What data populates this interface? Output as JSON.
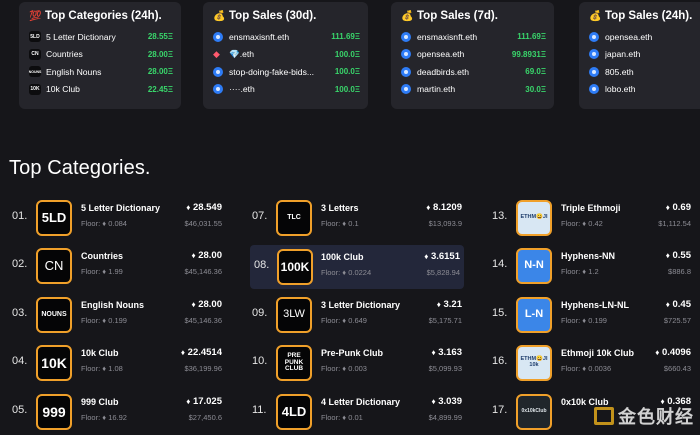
{
  "cards": [
    {
      "title_icon": "💯",
      "title": "Top Categories (24h).",
      "rows": [
        {
          "icon": "5LD",
          "label": "5 Letter Dictionary",
          "value": "28.55Ξ"
        },
        {
          "icon": "CN",
          "label": "Countries",
          "value": "28.00Ξ"
        },
        {
          "icon": "NOUNS",
          "label": "English Nouns",
          "value": "28.00Ξ"
        },
        {
          "icon": "10K",
          "label": "10k Club",
          "value": "22.45Ξ"
        }
      ]
    },
    {
      "title_icon": "💰",
      "title": "Top Sales (30d).",
      "rows": [
        {
          "icon": "ens",
          "label": "ensmaxisnft.eth",
          "value": "111.69Ξ"
        },
        {
          "icon": "gem",
          "label": "💎.eth",
          "value": "100.0Ξ"
        },
        {
          "icon": "ens",
          "label": "stop-doing-fake-bids...",
          "value": "100.0Ξ"
        },
        {
          "icon": "ens",
          "label": "····.eth",
          "value": "100.0Ξ"
        }
      ]
    },
    {
      "title_icon": "💰",
      "title": "Top Sales (7d).",
      "rows": [
        {
          "icon": "ens",
          "label": "ensmaxisnft.eth",
          "value": "111.69Ξ"
        },
        {
          "icon": "ens",
          "label": "opensea.eth",
          "value": "99.8931Ξ"
        },
        {
          "icon": "ens",
          "label": "deadbirds.eth",
          "value": "69.0Ξ"
        },
        {
          "icon": "ens",
          "label": "martin.eth",
          "value": "30.0Ξ"
        }
      ]
    },
    {
      "title_icon": "💰",
      "title": "Top Sales (24h).",
      "rows": [
        {
          "icon": "ens",
          "label": "opensea.eth",
          "value": ""
        },
        {
          "icon": "ens",
          "label": "japan.eth",
          "value": ""
        },
        {
          "icon": "ens",
          "label": "805.eth",
          "value": ""
        },
        {
          "icon": "ens",
          "label": "lobo.eth",
          "value": ""
        }
      ]
    }
  ],
  "section_title": "Top Categories.",
  "floor_label": "Floor:",
  "eth_symbol": "♦",
  "categories": [
    {
      "rank": "01.",
      "logo": "5LD",
      "name": "5 Letter Dictionary",
      "value": "28.549",
      "floor": "0.084",
      "usd": "$46,031.55"
    },
    {
      "rank": "02.",
      "logo": "CN",
      "name": "Countries",
      "value": "28.00",
      "floor": "1.99",
      "usd": "$45,146.36"
    },
    {
      "rank": "03.",
      "logo": "NOUNS",
      "name": "English Nouns",
      "value": "28.00",
      "floor": "0.199",
      "usd": "$45,146.36"
    },
    {
      "rank": "04.",
      "logo": "10K",
      "name": "10k Club",
      "value": "22.4514",
      "floor": "1.08",
      "usd": "$36,199.96"
    },
    {
      "rank": "05.",
      "logo": "999",
      "name": "999 Club",
      "value": "17.025",
      "floor": "16.92",
      "usd": "$27,450.6"
    },
    {
      "rank": "07.",
      "logo": "TLC",
      "name": "3 Letters",
      "value": "8.1209",
      "floor": "0.1",
      "usd": "$13,093.9"
    },
    {
      "rank": "08.",
      "logo": "100K",
      "name": "100k Club",
      "value": "3.6151",
      "floor": "0.0224",
      "usd": "$5,828.94"
    },
    {
      "rank": "09.",
      "logo": "3LW",
      "name": "3 Letter Dictionary",
      "value": "3.21",
      "floor": "0.649",
      "usd": "$5,175.71"
    },
    {
      "rank": "10.",
      "logo": "PRE PUNK CLUB",
      "name": "Pre-Punk Club",
      "value": "3.163",
      "floor": "0.003",
      "usd": "$5,099.93"
    },
    {
      "rank": "11.",
      "logo": "4LD",
      "name": "4 Letter Dictionary",
      "value": "3.039",
      "floor": "0.01",
      "usd": "$4,899.99"
    },
    {
      "rank": "13.",
      "logo": "ETHM😀JI",
      "name": "Triple Ethmoji",
      "value": "0.69",
      "floor": "0.42",
      "usd": "$1,112.54"
    },
    {
      "rank": "14.",
      "logo": "N-N",
      "name": "Hyphens-NN",
      "value": "0.55",
      "floor": "1.2",
      "usd": "$886.8"
    },
    {
      "rank": "15.",
      "logo": "L-N",
      "name": "Hyphens-LN-NL",
      "value": "0.45",
      "floor": "0.199",
      "usd": "$725.57"
    },
    {
      "rank": "16.",
      "logo": "ETHM😀JI 10k",
      "name": "Ethmoji 10k Club",
      "value": "0.4096",
      "floor": "0.0036",
      "usd": "$660.43"
    },
    {
      "rank": "17.",
      "logo": "0x10kClub",
      "name": "0x10k Club",
      "value": "0.368",
      "floor": "",
      "usd": ""
    }
  ],
  "watermark": "金色财经"
}
